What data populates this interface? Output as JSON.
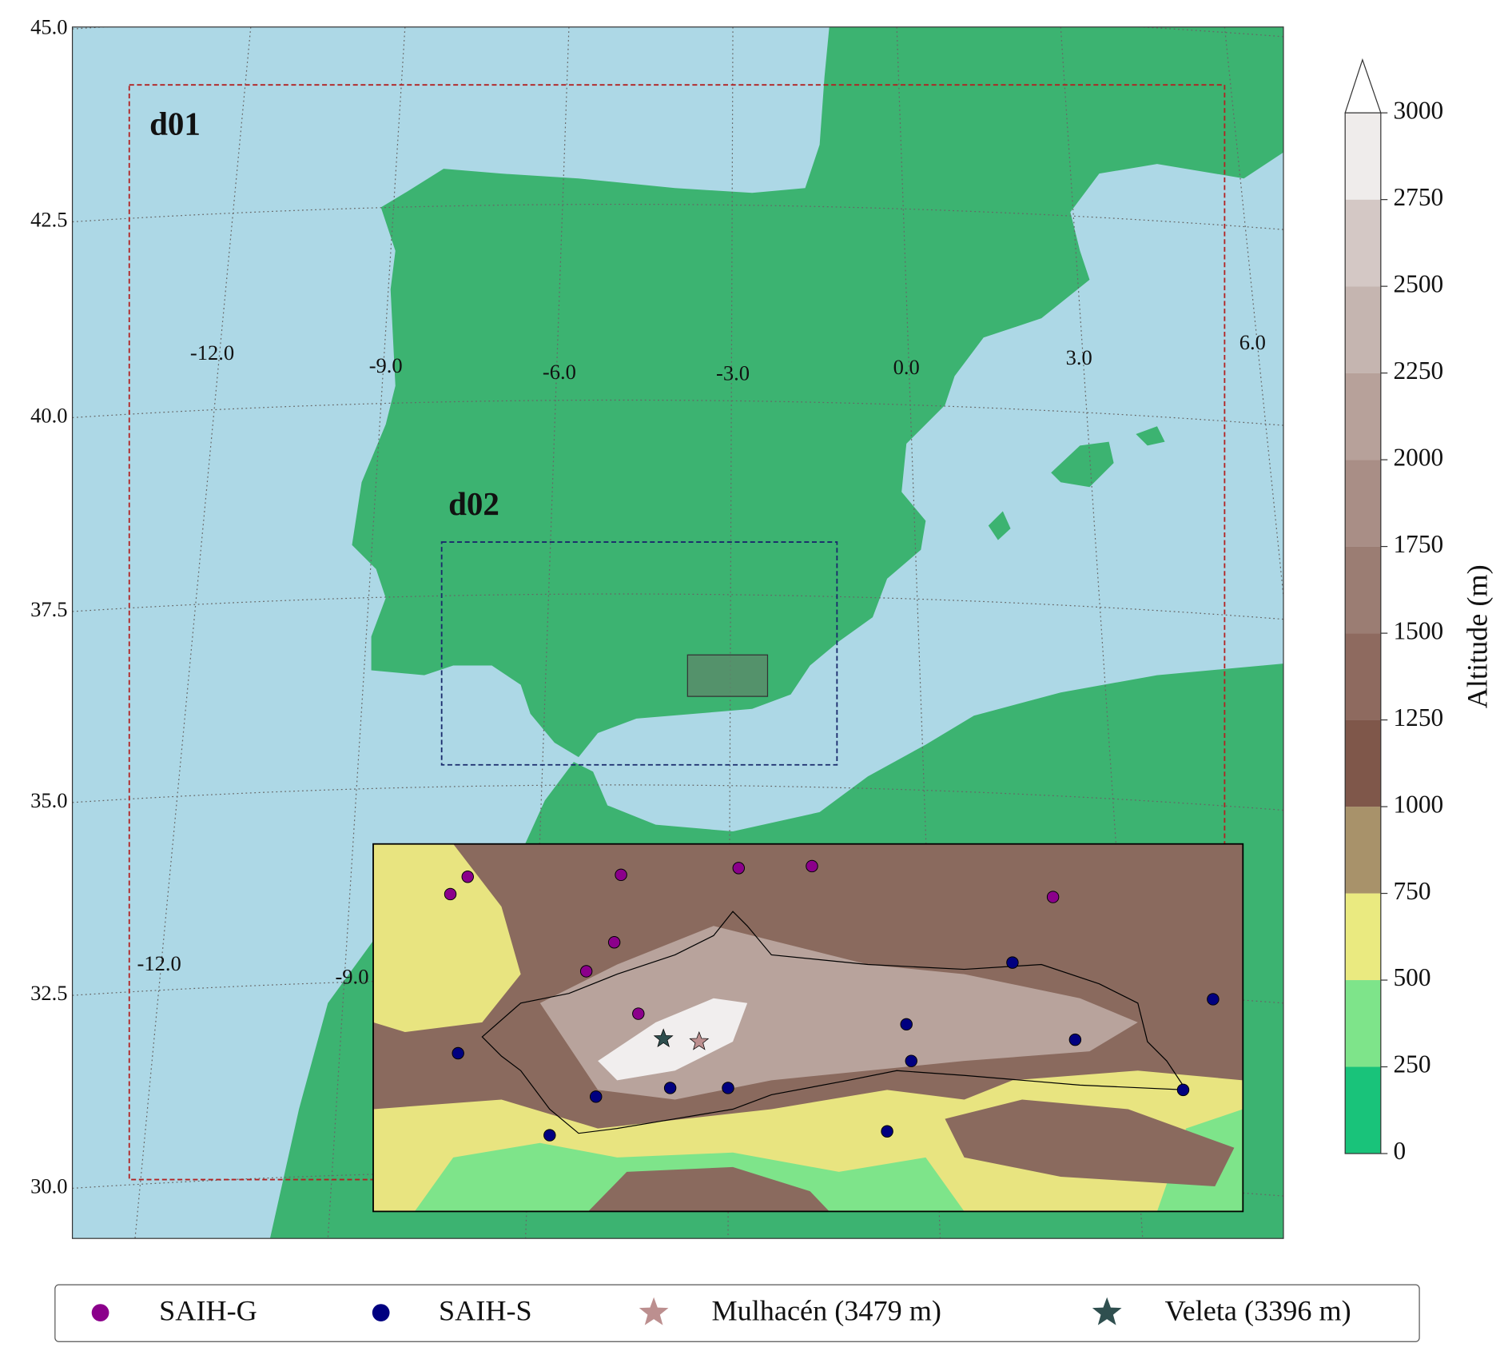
{
  "map": {
    "latitude_labels": [
      "45.0",
      "42.5",
      "40.0",
      "37.5",
      "35.0",
      "32.5",
      "30.0"
    ],
    "longitude_labels": [
      "-12.0",
      "-9.0",
      "-6.0",
      "-3.0",
      "0.0",
      "3.0",
      "6.0"
    ],
    "longitude_labels_lower": [
      "-12.0",
      "-9.0"
    ],
    "domains": [
      {
        "label": "d01",
        "color": "#b22222"
      },
      {
        "label": "d02",
        "color": "#1a2a6c"
      }
    ]
  },
  "colorbar": {
    "label": "Altitude (m)",
    "ticks": [
      0,
      250,
      500,
      750,
      1000,
      1250,
      1500,
      1750,
      2000,
      2250,
      2500,
      2750,
      3000
    ],
    "colors": [
      "#19c37a",
      "#7ee48a",
      "#eaea80",
      "#a8926a",
      "#7f574a",
      "#8e6a5f",
      "#9b7d73",
      "#a98e86",
      "#b7a19a",
      "#c5b5b0",
      "#d4c8c5",
      "#efeceb"
    ]
  },
  "legend": [
    {
      "label": "SAIH-G",
      "color": "#8b008b",
      "marker": "circle"
    },
    {
      "label": "SAIH-S",
      "color": "#000080",
      "marker": "circle"
    },
    {
      "label": "Mulhacén (3479 m)",
      "color": "#bc8f8f",
      "marker": "star"
    },
    {
      "label": "Veleta (3396 m)",
      "color": "#2f4f4f",
      "marker": "star"
    }
  ]
}
